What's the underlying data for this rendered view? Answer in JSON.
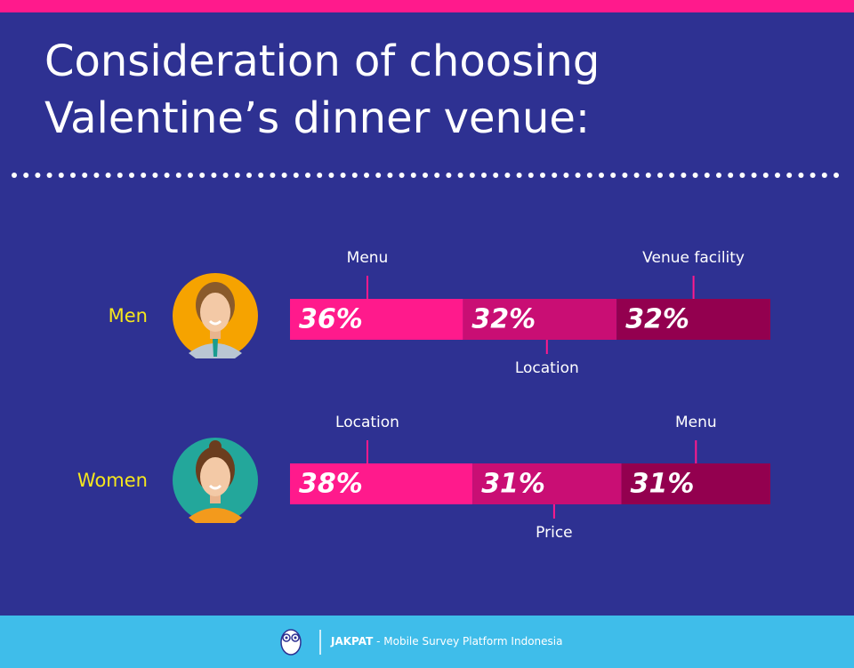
{
  "chart_data": {
    "type": "stacked-bar",
    "title": [
      "Consideration of choosing",
      "Valentine’s dinner venue:"
    ],
    "xlim": [
      0,
      100
    ],
    "colors": [
      "#ff1a8c",
      "#c90e74",
      "#93004f"
    ],
    "rows": [
      {
        "name": "Men",
        "avatar_color": "#f6a300",
        "labels": [
          "Menu",
          "Location",
          "Venue facility"
        ],
        "values": [
          36,
          32,
          32
        ],
        "value_labels": [
          "36%",
          "32%",
          "32%"
        ]
      },
      {
        "name": "Women",
        "avatar_color": "#23a79b",
        "labels": [
          "Location",
          "Price",
          "Menu"
        ],
        "values": [
          38,
          31,
          31
        ],
        "value_labels": [
          "38%",
          "31%",
          "31%"
        ]
      }
    ]
  },
  "footer": {
    "brand": "JAKPAT",
    "tagline": "- Mobile Survey Platform Indonesia"
  }
}
